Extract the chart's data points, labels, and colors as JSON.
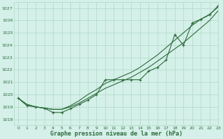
{
  "title": "Graphe pression niveau de la mer (hPa)",
  "bg_color": "#d4f0e8",
  "grid_color": "#b0d8c8",
  "line_color": "#2d6b3c",
  "ylim": [
    1017.5,
    1027.5
  ],
  "xlim": [
    -0.5,
    23
  ],
  "yticks": [
    1018,
    1019,
    1020,
    1021,
    1022,
    1023,
    1024,
    1025,
    1026,
    1027
  ],
  "xticks": [
    0,
    1,
    2,
    3,
    4,
    5,
    6,
    7,
    8,
    9,
    10,
    11,
    12,
    13,
    14,
    15,
    16,
    17,
    18,
    19,
    20,
    21,
    22,
    23
  ],
  "series_marker": [
    1019.7,
    1019.1,
    1019.0,
    1018.9,
    1018.55,
    1018.55,
    1018.85,
    1019.2,
    1019.55,
    1020.0,
    1021.2,
    1021.2,
    1021.2,
    1021.2,
    1021.2,
    1021.9,
    1022.2,
    1022.8,
    1024.85,
    1024.0,
    1025.8,
    1026.1,
    1026.45,
    1027.2
  ],
  "series_smooth1": [
    1019.7,
    1019.2,
    1019.0,
    1018.9,
    1018.8,
    1018.8,
    1019.0,
    1019.3,
    1019.7,
    1020.1,
    1020.5,
    1020.8,
    1021.1,
    1021.4,
    1021.8,
    1022.2,
    1022.7,
    1023.2,
    1023.7,
    1024.2,
    1024.8,
    1025.4,
    1026.0,
    1026.8
  ],
  "series_smooth2": [
    1019.7,
    1019.2,
    1019.0,
    1018.9,
    1018.8,
    1018.8,
    1019.1,
    1019.5,
    1020.0,
    1020.4,
    1020.9,
    1021.2,
    1021.5,
    1021.8,
    1022.2,
    1022.7,
    1023.2,
    1023.8,
    1024.4,
    1025.0,
    1025.6,
    1026.1,
    1026.5,
    1027.1
  ]
}
